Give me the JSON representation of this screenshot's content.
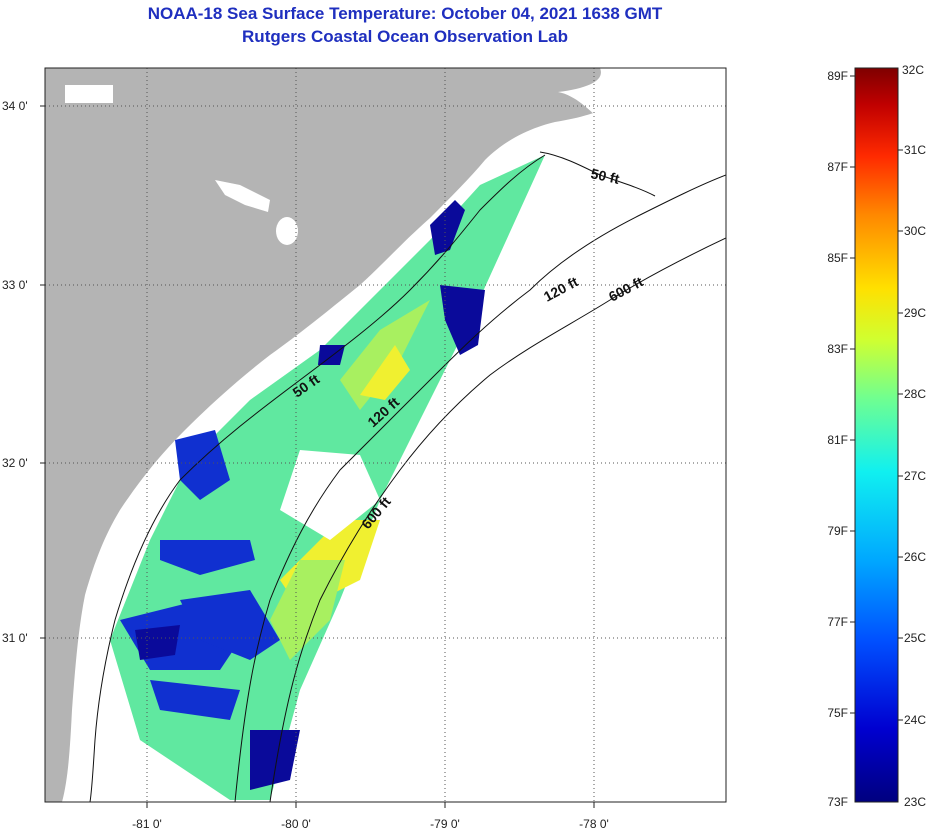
{
  "title": "NOAA-18 Sea Surface Temperature:  October 04, 2021 1638 GMT",
  "subtitle": "Rutgers Coastal Ocean Observation Lab",
  "axes": {
    "lat_labels": [
      "34 0'",
      "33 0'",
      "32 0'",
      "31 0'"
    ],
    "lon_labels": [
      "-81 0'",
      "-80 0'",
      "-79 0'",
      "-78 0'"
    ]
  },
  "contours": {
    "label_50_a": "50 ft",
    "label_50_b": "50 ft",
    "label_120_a": "120 ft",
    "label_120_b": "120 ft",
    "label_600_a": "600 ft",
    "label_600_b": "600 ft"
  },
  "colorbar": {
    "fahrenheit": [
      "89F",
      "87F",
      "85F",
      "83F",
      "81F",
      "79F",
      "77F",
      "75F",
      "73F"
    ],
    "celsius": [
      "32C",
      "31C",
      "30C",
      "29C",
      "28C",
      "27C",
      "26C",
      "25C",
      "24C",
      "23C"
    ],
    "colors": [
      "#00007f",
      "#0000d0",
      "#0050ff",
      "#00a8ff",
      "#10f0f0",
      "#70ff90",
      "#d0ff30",
      "#ffe000",
      "#ff8800",
      "#ff2a00",
      "#c00000",
      "#7f0000"
    ]
  },
  "colors": {
    "land": "#b4b4b4",
    "grid": "#555555",
    "title": "#1f2fbf"
  }
}
